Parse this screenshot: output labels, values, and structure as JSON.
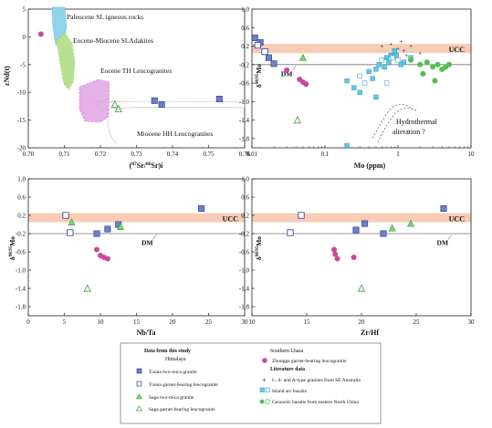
{
  "colors": {
    "tuona_filled": "#6f7fc4",
    "saga_green": "#7fd27f",
    "zhongga": "#c9489a",
    "island_arc": "#5ec8e8",
    "cenozoic": "#4cc24c",
    "ucc_band": "#f6c8ae",
    "hydrothermal": "#cc2222",
    "paleocene_field": "#8fd3ec",
    "eocene_miocene_field": "#b9e08e",
    "eocene_th_field": "#e6b0e8"
  },
  "chart_data": [
    {
      "id": "a",
      "type": "scatter",
      "title": "",
      "xlabel": "(87Sr/86Sr)i",
      "ylabel": "εNd(t)",
      "xlim": [
        0.7,
        0.76
      ],
      "ylim": [
        -20,
        5
      ],
      "xticks": [
        "0.70",
        "0.71",
        "0.72",
        "0.73",
        "0.74",
        "0.75",
        "0.76"
      ],
      "yticks": [
        "5",
        "0",
        "-5",
        "-10",
        "-15",
        "-20"
      ],
      "annotations": [
        "Paleocene SL igneous rocks",
        "Eocene-Miocene SLAdakites",
        "Eocene TH Leucogranites",
        "Miocene HH Leucogranites"
      ],
      "series": [
        {
          "name": "Tuona two-mica granite",
          "marker": "filled-square",
          "x": [
            0.735,
            0.737,
            0.753
          ],
          "y": [
            -11.5,
            -12.2,
            -11.2
          ]
        },
        {
          "name": "Saga two-mica granite",
          "marker": "open-triangle",
          "x": [
            0.724,
            0.725
          ],
          "y": [
            -12.2,
            -13.0
          ]
        },
        {
          "name": "Zhongga garnet-bearing leucogranite",
          "marker": "circle",
          "x": [
            0.7035
          ],
          "y": [
            0.5
          ]
        }
      ]
    },
    {
      "id": "b",
      "type": "scatter",
      "title": "",
      "xlabel": "Mo (ppm)",
      "ylabel": "δ98/95Mo",
      "xscale": "log",
      "xlim": [
        0.01,
        10
      ],
      "ylim": [
        -2.0,
        1.0
      ],
      "xticks": [
        "0.01",
        "0.1",
        "1",
        "10"
      ],
      "yticks": [
        "1.0",
        "0.6",
        "0.2",
        "-0.2",
        "-0.6",
        "-1.0",
        "-1.4",
        "-1.8"
      ],
      "reference_labels": [
        "UCC",
        "DM"
      ],
      "annotations": [
        "Hydrothermal alteration ?"
      ],
      "series": [
        {
          "name": "Tuona two-mica granite",
          "marker": "filled-square",
          "x": [
            0.011,
            0.013,
            0.017,
            0.02
          ],
          "y": [
            0.38,
            0.28,
            -0.05,
            -0.18
          ]
        },
        {
          "name": "Tuona garnet-bearing leucogranite",
          "marker": "open-square",
          "x": [
            0.012,
            0.015
          ],
          "y": [
            0.22,
            0.08
          ]
        },
        {
          "name": "Saga two-mica granite",
          "marker": "filled-triangle",
          "x": [
            0.05
          ],
          "y": [
            -0.05
          ]
        },
        {
          "name": "Saga garnet-bearing leucogranite",
          "marker": "open-triangle",
          "x": [
            0.042
          ],
          "y": [
            -1.4
          ]
        },
        {
          "name": "Zhongga garnet-bearing leucogranite",
          "marker": "circle",
          "x": [
            0.03,
            0.045,
            0.05,
            0.055
          ],
          "y": [
            -0.32,
            -0.52,
            -0.58,
            -0.62
          ]
        },
        {
          "name": "I-, S- and A-type granites from SE Australia",
          "marker": "plus",
          "x": [
            0.6,
            0.8,
            1.0,
            1.2,
            1.5,
            2.0,
            0.9,
            1.1,
            1.3
          ],
          "y": [
            0.2,
            0.25,
            0.15,
            0.1,
            0.2,
            0.05,
            -0.05,
            0.3,
            0.0
          ]
        },
        {
          "name": "Island arc basalts",
          "marker": "square",
          "x": [
            0.2,
            0.3,
            0.4,
            0.5,
            0.55,
            0.6,
            0.7,
            0.8,
            0.9,
            1.0,
            1.2,
            1.5,
            0.25,
            0.35,
            0.45,
            0.65,
            0.75,
            0.85,
            0.95,
            1.1,
            0.5,
            0.7,
            0.3,
            0.9,
            0.2
          ],
          "y": [
            -0.55,
            -0.45,
            -0.35,
            -0.3,
            -0.2,
            -0.1,
            -0.05,
            0.0,
            0.05,
            -0.1,
            -0.15,
            -0.05,
            -0.7,
            -0.6,
            -0.5,
            -0.25,
            -0.15,
            -0.05,
            0.0,
            -0.2,
            -0.9,
            -0.6,
            -0.8,
            0.1,
            -1.95
          ]
        },
        {
          "name": "Cenozoic basalts from eastern North China",
          "marker": "circle",
          "x": [
            2.0,
            2.5,
            3.0,
            3.5,
            4.0,
            4.5,
            5.0,
            2.2,
            3.2,
            1.5
          ],
          "y": [
            -0.2,
            -0.15,
            -0.25,
            -0.2,
            -0.3,
            -0.25,
            -0.2,
            -0.4,
            -0.55,
            -0.1
          ]
        }
      ]
    },
    {
      "id": "c",
      "type": "scatter",
      "title": "",
      "xlabel": "Nb/Ta",
      "ylabel": "δ98/95Mo",
      "xlim": [
        0,
        30
      ],
      "ylim": [
        -2.0,
        1.0
      ],
      "xticks": [
        "0",
        "5",
        "10",
        "15",
        "20",
        "25",
        "30"
      ],
      "yticks": [
        "1.0",
        "0.6",
        "0.2",
        "-0.2",
        "-0.6",
        "-1.0",
        "-1.4",
        "-1.8"
      ],
      "reference_labels": [
        "UCC",
        "DM"
      ],
      "series": [
        {
          "name": "Tuona two-mica granite",
          "marker": "filled-square",
          "x": [
            9.5,
            11,
            12.5,
            24
          ],
          "y": [
            -0.2,
            -0.1,
            0.0,
            0.35
          ]
        },
        {
          "name": "Tuona garnet-bearing leucogranite",
          "marker": "open-square",
          "x": [
            5.2,
            5.8
          ],
          "y": [
            0.2,
            -0.18
          ]
        },
        {
          "name": "Saga two-mica granite",
          "marker": "filled-triangle",
          "x": [
            6.0,
            12.8
          ],
          "y": [
            0.05,
            -0.05
          ]
        },
        {
          "name": "Saga garnet-bearing leucogranite",
          "marker": "open-triangle",
          "x": [
            8.2
          ],
          "y": [
            -1.4
          ]
        },
        {
          "name": "Zhongga garnet-bearing leucogranite",
          "marker": "circle",
          "x": [
            9.5,
            10.0,
            10.5,
            11.0
          ],
          "y": [
            -0.55,
            -0.68,
            -0.72,
            -0.75
          ]
        }
      ]
    },
    {
      "id": "d",
      "type": "scatter",
      "title": "",
      "xlabel": "Zr/Hf",
      "ylabel": "δ98/95Mo",
      "xlim": [
        10,
        30
      ],
      "ylim": [
        -2.0,
        1.0
      ],
      "xticks": [
        "10",
        "15",
        "20",
        "25",
        "30"
      ],
      "yticks": [
        "1.0",
        "0.6",
        "0.2",
        "-0.2",
        "-0.6",
        "-1.0",
        "-1.4",
        "-1.8"
      ],
      "reference_labels": [
        "UCC",
        "DM"
      ],
      "series": [
        {
          "name": "Tuona two-mica granite",
          "marker": "filled-square",
          "x": [
            19.5,
            20.3,
            22,
            27.5
          ],
          "y": [
            -0.12,
            0.02,
            -0.2,
            0.35
          ]
        },
        {
          "name": "Tuona garnet-bearing leucogranite",
          "marker": "open-square",
          "x": [
            13.5,
            14.5
          ],
          "y": [
            -0.18,
            0.2
          ]
        },
        {
          "name": "Saga two-mica granite",
          "marker": "filled-triangle",
          "x": [
            22.8,
            24.5
          ],
          "y": [
            -0.08,
            0.02
          ]
        },
        {
          "name": "Saga garnet-bearing leucogranite",
          "marker": "open-triangle",
          "x": [
            20
          ],
          "y": [
            -1.4
          ]
        },
        {
          "name": "Zhongga garnet-bearing leucogranite",
          "marker": "circle",
          "x": [
            17.5,
            17.6,
            17.8,
            19.3
          ],
          "y": [
            -0.55,
            -0.65,
            -0.75,
            -0.72
          ]
        }
      ]
    }
  ],
  "legend": {
    "title_this_study": "Data from this study",
    "group_himalaya": "Himalaya",
    "group_southern_lhasa": "Southern Lhasa",
    "group_literature": "Literature data",
    "items": {
      "tuona_two_mica": "Tuona two-mica granite",
      "tuona_garnet": "Tuona garnet-bearing leucogranite",
      "saga_two_mica": "Saga two-mica granite",
      "saga_garnet": "Saga garnet-bearing leucogranite",
      "zhongga": "Zhongga garnet-bearing leucogranite",
      "se_australia": "I-, S- and A-type granites from SE Australia",
      "island_arc": "Island arc basalts",
      "cenozoic": "Cenozoic basalts from eastern North China"
    }
  }
}
